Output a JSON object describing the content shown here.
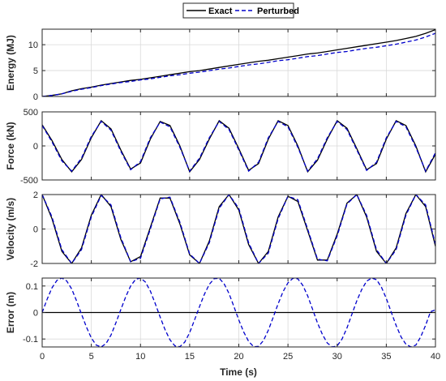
{
  "legend": {
    "entries": [
      {
        "label": "Exact",
        "color": "#000000",
        "dash": "solid"
      },
      {
        "label": "Perturbed",
        "color": "#0000cc",
        "dash": "dashed"
      }
    ]
  },
  "chart_data": {
    "type": "line",
    "x_label": "Time (s)",
    "x_range": [
      0,
      40
    ],
    "x_ticks": [
      0,
      5,
      10,
      15,
      20,
      25,
      30,
      35,
      40
    ],
    "grid": true,
    "legend_position": "top-center",
    "subplots": [
      {
        "id": "energy",
        "ylabel": "Energy (MJ)",
        "ylim": [
          0,
          13
        ],
        "yticks": [
          0,
          5,
          10
        ],
        "series": [
          {
            "name": "Exact",
            "color": "#000000",
            "dash": "solid",
            "x": [
              0,
              1,
              2,
              3,
              4,
              5,
              6,
              7,
              8,
              9,
              10,
              11,
              12,
              13,
              14,
              15,
              16,
              17,
              18,
              19,
              20,
              21,
              22,
              23,
              24,
              25,
              26,
              27,
              28,
              29,
              30,
              31,
              32,
              33,
              34,
              35,
              36,
              37,
              38,
              39,
              40
            ],
            "y": [
              0,
              0.2,
              0.5,
              1.1,
              1.5,
              1.8,
              2.2,
              2.5,
              2.8,
              3.1,
              3.3,
              3.6,
              3.9,
              4.2,
              4.5,
              4.8,
              5.0,
              5.3,
              5.6,
              5.9,
              6.2,
              6.5,
              6.8,
              7.0,
              7.3,
              7.6,
              7.9,
              8.2,
              8.4,
              8.7,
              9.0,
              9.3,
              9.6,
              9.9,
              10.2,
              10.5,
              10.8,
              11.2,
              11.6,
              12.2,
              12.9
            ]
          },
          {
            "name": "Perturbed",
            "color": "#0000cc",
            "dash": "dashed",
            "x": [
              0,
              1,
              2,
              3,
              4,
              5,
              6,
              7,
              8,
              9,
              10,
              11,
              12,
              13,
              14,
              15,
              16,
              17,
              18,
              19,
              20,
              21,
              22,
              23,
              24,
              25,
              26,
              27,
              28,
              29,
              30,
              31,
              32,
              33,
              34,
              35,
              36,
              37,
              38,
              39,
              40
            ],
            "y": [
              0,
              0.2,
              0.5,
              1.0,
              1.4,
              1.7,
              2.1,
              2.4,
              2.7,
              2.9,
              3.2,
              3.4,
              3.7,
              4.0,
              4.2,
              4.5,
              4.7,
              5.0,
              5.3,
              5.5,
              5.8,
              6.1,
              6.3,
              6.6,
              6.9,
              7.1,
              7.4,
              7.7,
              7.9,
              8.2,
              8.5,
              8.7,
              9.0,
              9.3,
              9.5,
              9.8,
              10.1,
              10.5,
              10.9,
              11.5,
              12.2
            ]
          }
        ]
      },
      {
        "id": "force",
        "ylabel": "Force (kN)",
        "ylim": [
          -500,
          500
        ],
        "yticks": [
          -500,
          0,
          500
        ],
        "series": [
          {
            "name": "Exact",
            "color": "#000000",
            "dash": "solid",
            "x": [
              0,
              1,
              2,
              3,
              4,
              5,
              6,
              7,
              8,
              9,
              10,
              11,
              12,
              13,
              14,
              15,
              16,
              17,
              18,
              19,
              20,
              21,
              22,
              23,
              24,
              25,
              26,
              27,
              28,
              29,
              30,
              31,
              32,
              33,
              34,
              35,
              36,
              37,
              38,
              39,
              40
            ],
            "y": [
              310,
              80,
              -200,
              -380,
              -200,
              120,
              370,
              250,
              -60,
              -340,
              -250,
              100,
              360,
              300,
              0,
              -380,
              -200,
              100,
              370,
              260,
              -40,
              -360,
              -260,
              100,
              370,
              300,
              0,
              -380,
              -210,
              100,
              370,
              260,
              -40,
              -350,
              -260,
              100,
              370,
              300,
              0,
              -380,
              -120
            ]
          },
          {
            "name": "Perturbed",
            "color": "#0000cc",
            "dash": "dashed",
            "x": [
              0,
              1,
              2,
              3,
              4,
              5,
              6,
              7,
              8,
              9,
              10,
              11,
              12,
              13,
              14,
              15,
              16,
              17,
              18,
              19,
              20,
              21,
              22,
              23,
              24,
              25,
              26,
              27,
              28,
              29,
              30,
              31,
              32,
              33,
              34,
              35,
              36,
              37,
              38,
              39,
              40
            ],
            "y": [
              300,
              60,
              -220,
              -370,
              -180,
              140,
              360,
              230,
              -80,
              -350,
              -230,
              120,
              350,
              280,
              -20,
              -370,
              -180,
              120,
              360,
              240,
              -60,
              -370,
              -240,
              120,
              360,
              280,
              -20,
              -370,
              -190,
              120,
              360,
              240,
              -60,
              -360,
              -240,
              120,
              360,
              280,
              -20,
              -370,
              -100
            ]
          }
        ]
      },
      {
        "id": "velocity",
        "ylabel": "Velocity (m/s)",
        "ylim": [
          -2,
          2
        ],
        "yticks": [
          -2,
          0,
          2
        ],
        "series": [
          {
            "name": "Exact",
            "color": "#000000",
            "dash": "solid",
            "x": [
              0,
              1,
              2,
              3,
              4,
              5,
              6,
              7,
              8,
              9,
              10,
              11,
              12,
              13,
              14,
              15,
              16,
              17,
              18,
              19,
              20,
              21,
              22,
              23,
              24,
              25,
              26,
              27,
              28,
              29,
              30,
              31,
              32,
              33,
              34,
              35,
              36,
              37,
              38,
              39,
              40
            ],
            "y": [
              2,
              0.6,
              -1.3,
              -2,
              -1.1,
              0.8,
              2,
              1.3,
              -0.6,
              -1.9,
              -1.6,
              0.1,
              1.8,
              1.8,
              0.3,
              -1.5,
              -2,
              -0.7,
              1.3,
              2,
              1.1,
              -0.9,
              -2,
              -1.3,
              0.7,
              1.9,
              1.6,
              -0.1,
              -1.8,
              -1.8,
              -0.3,
              1.5,
              2,
              0.7,
              -1.3,
              -2,
              -1.1,
              0.9,
              2,
              1.3,
              -1.0
            ]
          },
          {
            "name": "Perturbed",
            "color": "#0000cc",
            "dash": "dashed",
            "x": [
              0,
              1,
              2,
              3,
              4,
              5,
              6,
              7,
              8,
              9,
              10,
              11,
              12,
              13,
              14,
              15,
              16,
              17,
              18,
              19,
              20,
              21,
              22,
              23,
              24,
              25,
              26,
              27,
              28,
              29,
              30,
              31,
              32,
              33,
              34,
              35,
              36,
              37,
              38,
              39,
              40
            ],
            "y": [
              2,
              0.7,
              -1.2,
              -2,
              -1.2,
              0.7,
              1.95,
              1.4,
              -0.5,
              -1.9,
              -1.7,
              0,
              1.75,
              1.85,
              0.4,
              -1.45,
              -2,
              -0.8,
              1.2,
              2,
              1.2,
              -0.8,
              -2,
              -1.4,
              0.6,
              1.9,
              1.7,
              0,
              -1.75,
              -1.85,
              -0.4,
              1.45,
              2,
              0.8,
              -1.2,
              -2,
              -1.2,
              0.8,
              2,
              1.4,
              -0.9
            ]
          }
        ]
      },
      {
        "id": "error",
        "ylabel": "Error (m)",
        "ylim": [
          -0.13,
          0.13
        ],
        "yticks": [
          -0.1,
          0,
          0.1
        ],
        "series": [
          {
            "name": "Exact",
            "color": "#000000",
            "dash": "solid",
            "x": [
              0,
              40
            ],
            "y": [
              0,
              0
            ]
          },
          {
            "name": "Perturbed",
            "color": "#0000cc",
            "dash": "dashed",
            "x": [
              0,
              0.5,
              1,
              1.5,
              2,
              2.5,
              3,
              3.5,
              4,
              4.5,
              5,
              5.5,
              6,
              6.5,
              7,
              7.5,
              8,
              8.5,
              9,
              9.5,
              10,
              10.5,
              11,
              11.5,
              12,
              12.5,
              13,
              13.5,
              14,
              14.5,
              15,
              15.5,
              16,
              16.5,
              17,
              17.5,
              18,
              18.5,
              19,
              19.5,
              20,
              20.5,
              21,
              21.5,
              22,
              22.5,
              23,
              23.5,
              24,
              24.5,
              25,
              25.5,
              26,
              26.5,
              27,
              27.5,
              28,
              28.5,
              29,
              29.5,
              30,
              30.5,
              31,
              31.5,
              32,
              32.5,
              33,
              33.5,
              34,
              34.5,
              35,
              35.5,
              36,
              36.5,
              37,
              37.5,
              38,
              38.5,
              39,
              39.5,
              40
            ],
            "y": [
              0,
              0.05,
              0.093,
              0.121,
              0.13,
              0.119,
              0.089,
              0.044,
              -0.006,
              -0.055,
              -0.096,
              -0.123,
              -0.13,
              -0.117,
              -0.085,
              -0.039,
              0.011,
              0.06,
              0.1,
              0.125,
              0.13,
              0.115,
              0.081,
              0.034,
              -0.017,
              -0.065,
              -0.103,
              -0.126,
              -0.129,
              -0.112,
              -0.076,
              -0.028,
              0.022,
              0.069,
              0.106,
              0.128,
              0.129,
              0.109,
              0.072,
              0.023,
              -0.028,
              -0.074,
              -0.109,
              -0.129,
              -0.128,
              -0.106,
              -0.067,
              -0.018,
              0.033,
              0.079,
              0.112,
              0.129,
              0.127,
              0.103,
              0.063,
              0.013,
              -0.039,
              -0.083,
              -0.115,
              -0.13,
              -0.126,
              -0.1,
              -0.058,
              -0.007,
              0.044,
              0.087,
              0.118,
              0.13,
              0.124,
              0.096,
              0.053,
              0.002,
              -0.049,
              -0.092,
              -0.12,
              -0.13,
              -0.123,
              -0.092,
              -0.048,
              0.003,
              0.01
            ]
          }
        ]
      }
    ]
  }
}
